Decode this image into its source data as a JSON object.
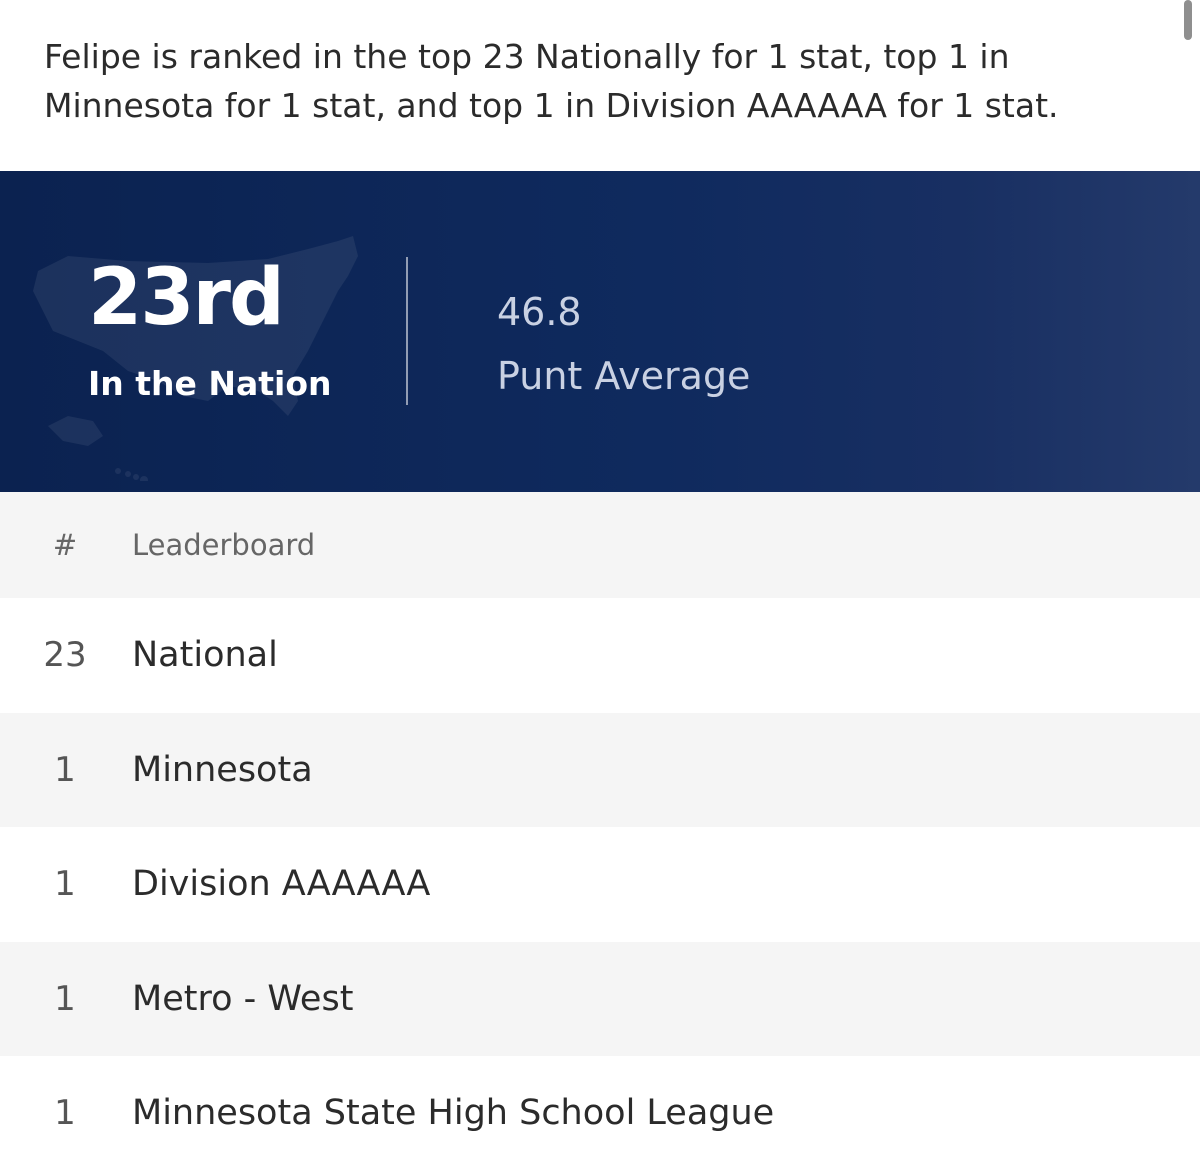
{
  "summary": "Felipe is ranked in the top 23 Nationally for 1 stat, top 1 in Minnesota for 1 stat, and top 1 in Division AAAAAA for 1 stat.",
  "hero": {
    "rank": "23rd",
    "rank_label": "In the Nation",
    "stat_value": "46.8",
    "stat_label": "Punt Average",
    "background_color": "#0f2a5e",
    "map_icon": "usa-map-icon"
  },
  "leaderboard": {
    "header": {
      "rank": "#",
      "name": "Leaderboard"
    },
    "rows": [
      {
        "rank": "23",
        "name": "National"
      },
      {
        "rank": "1",
        "name": "Minnesota"
      },
      {
        "rank": "1",
        "name": "Division AAAAAA"
      },
      {
        "rank": "1",
        "name": "Metro - West"
      },
      {
        "rank": "1",
        "name": "Minnesota State High School League"
      }
    ]
  }
}
